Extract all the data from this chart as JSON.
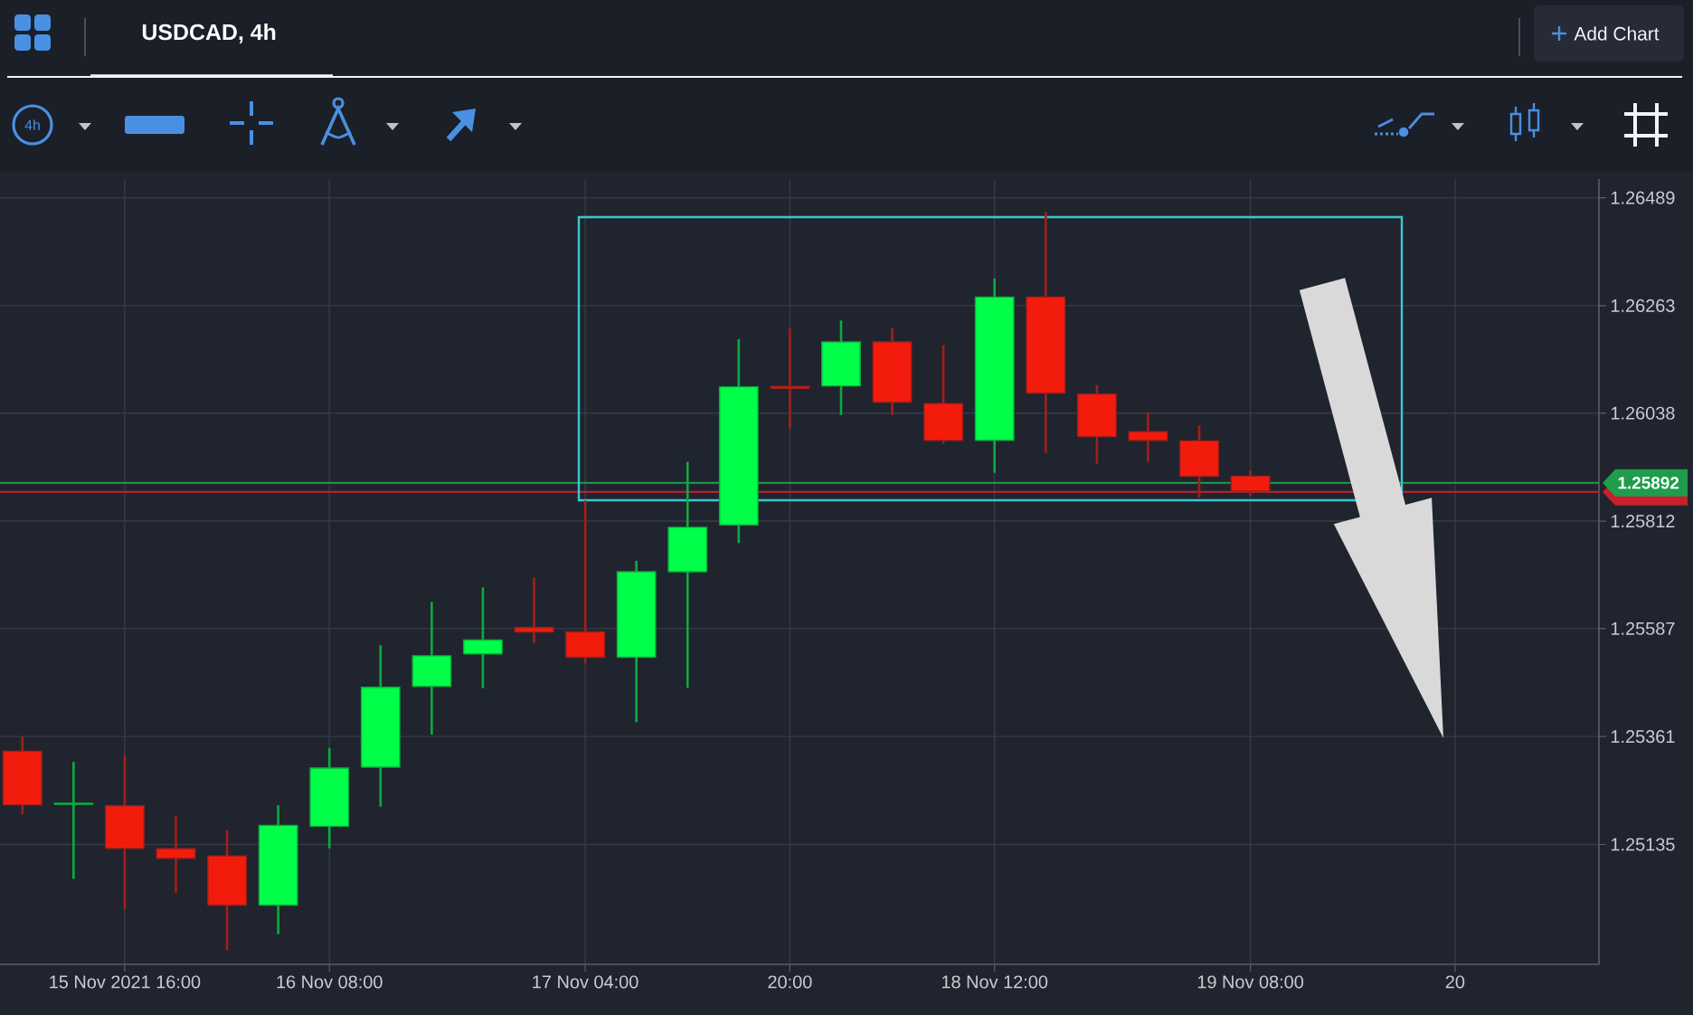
{
  "chart_data": {
    "type": "candlestick",
    "title": "USDCAD, 4h",
    "annotations": [
      "4h",
      "Add Chart"
    ],
    "x": [
      "2021-11-15T08:00",
      "2021-11-15T12:00",
      "2021-11-15T16:00",
      "2021-11-15T20:00",
      "2021-11-16T00:00",
      "2021-11-16T04:00",
      "2021-11-16T08:00",
      "2021-11-16T12:00",
      "2021-11-16T16:00",
      "2021-11-16T20:00",
      "2021-11-17T00:00",
      "2021-11-17T04:00",
      "2021-11-17T08:00",
      "2021-11-17T12:00",
      "2021-11-17T16:00",
      "2021-11-17T20:00",
      "2021-11-18T00:00",
      "2021-11-18T04:00",
      "2021-11-18T08:00",
      "2021-11-18T12:00",
      "2021-11-18T16:00",
      "2021-11-18T20:00",
      "2021-11-19T00:00",
      "2021-11-19T04:00",
      "2021-11-19T08:00"
    ],
    "ohlc": [
      [
        1.2533,
        1.2536,
        1.25198,
        1.25218
      ],
      [
        1.25219,
        1.25308,
        1.25063,
        1.25221
      ],
      [
        1.25216,
        1.25322,
        1.25,
        1.25127
      ],
      [
        1.25126,
        1.25194,
        1.25034,
        1.25106
      ],
      [
        1.25111,
        1.25165,
        1.24913,
        1.25008
      ],
      [
        1.25008,
        1.25217,
        1.24947,
        1.25175
      ],
      [
        1.25173,
        1.25337,
        1.25127,
        1.25295
      ],
      [
        1.25297,
        1.25552,
        1.25214,
        1.25464
      ],
      [
        1.25466,
        1.25643,
        1.25365,
        1.2553
      ],
      [
        1.25534,
        1.25673,
        1.25462,
        1.25563
      ],
      [
        1.25589,
        1.25694,
        1.25557,
        1.2558
      ],
      [
        1.2558,
        1.25855,
        1.25514,
        1.25527
      ],
      [
        1.25527,
        1.25729,
        1.25391,
        1.25706
      ],
      [
        1.25706,
        1.25936,
        1.25463,
        1.25799
      ],
      [
        1.25804,
        1.26193,
        1.25766,
        1.26093
      ],
      [
        1.26094,
        1.26215,
        1.26006,
        1.2609
      ],
      [
        1.26095,
        1.26232,
        1.26034,
        1.26187
      ],
      [
        1.26187,
        1.26217,
        1.26034,
        1.26061
      ],
      [
        1.26058,
        1.26181,
        1.25974,
        1.25981
      ],
      [
        1.25981,
        1.2632,
        1.25913,
        1.26281
      ],
      [
        1.26281,
        1.26459,
        1.25955,
        1.2608
      ],
      [
        1.26078,
        1.26097,
        1.25932,
        1.25989
      ],
      [
        1.25999,
        1.2604,
        1.25936,
        1.25981
      ],
      [
        1.2598,
        1.26012,
        1.25861,
        1.25906
      ],
      [
        1.25906,
        1.25918,
        1.25865,
        1.25875
      ]
    ],
    "colors": [
      "#f31c0c",
      "#00ff48",
      "#f31c0c",
      "#f31c0c",
      "#f31c0c",
      "#00ff48",
      "#00ff48",
      "#00ff48",
      "#00ff48",
      "#00ff48",
      "#f31c0c",
      "#f31c0c",
      "#00ff48",
      "#00ff48",
      "#00ff48",
      "#f31c0c",
      "#00ff48",
      "#f31c0c",
      "#f31c0c",
      "#00ff48",
      "#f31c0c",
      "#f31c0c",
      "#f31c0c",
      "#f31c0c",
      "#f31c0c"
    ],
    "xlim": [
      "2021-11-15T06:15",
      "2021-11-20T11:15"
    ],
    "ylim": [
      1.24884,
      1.26528
    ],
    "xticks": [
      {
        "value": "2021-11-15T16:00",
        "label": "15 Nov 2021 16:00"
      },
      {
        "value": "2021-11-16T08:00",
        "label": "16 Nov 08:00"
      },
      {
        "value": "2021-11-17T04:00",
        "label": "17 Nov 04:00"
      },
      {
        "value": "2021-11-17T20:00",
        "label": "20:00"
      },
      {
        "value": "2021-11-18T12:00",
        "label": "18 Nov 12:00"
      },
      {
        "value": "2021-11-19T08:00",
        "label": "19 Nov 08:00"
      },
      {
        "value": "2021-11-20T00:00",
        "label": "20"
      }
    ],
    "yticks": [
      1.26489,
      1.26263,
      1.26038,
      1.25812,
      1.25587,
      1.25361,
      1.25135
    ],
    "grid": true,
    "ref_lines": [
      {
        "axis": "y",
        "value": 1.25873,
        "color": "#c8202c"
      },
      {
        "axis": "y",
        "value": 1.25892,
        "label": "1.25892",
        "color": "#1f9d4c"
      }
    ]
  }
}
